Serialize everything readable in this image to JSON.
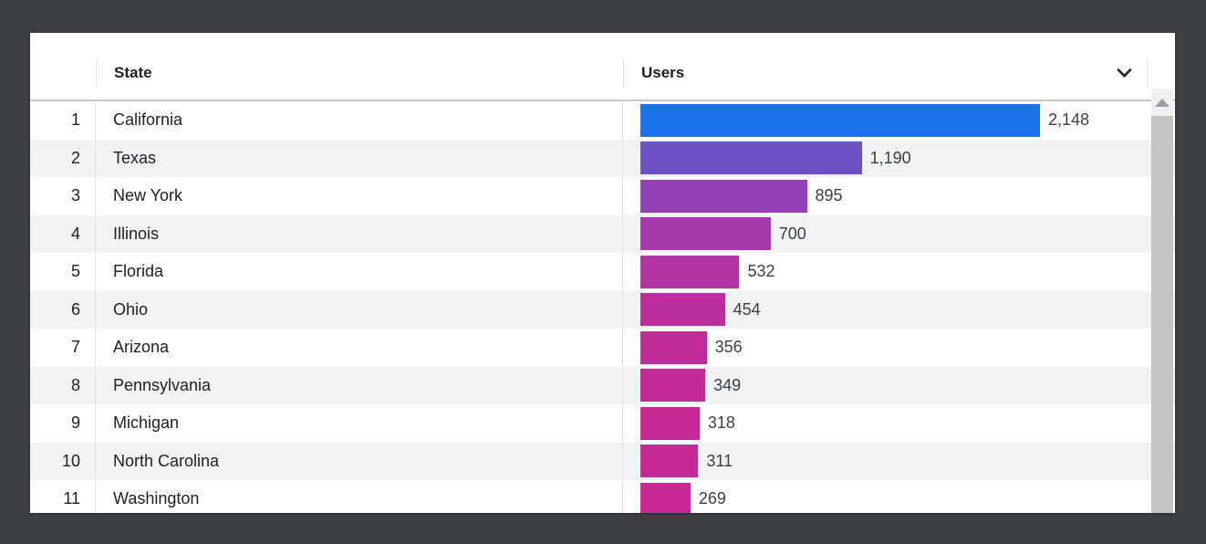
{
  "page": {
    "background_color": "#3c4043",
    "card_color": "#ffffff"
  },
  "icons": {
    "column_chevron": "chevron-down",
    "scrollbar_up": "triangle-up"
  },
  "table": {
    "columns": [
      {
        "key": "state",
        "label": "State"
      },
      {
        "key": "users",
        "label": "Users"
      }
    ],
    "max_users": 2148,
    "rows": [
      {
        "rank": "1",
        "state": "California",
        "users": 2148,
        "users_label": "2,148",
        "bar_color": "#1a73e8"
      },
      {
        "rank": "2",
        "state": "Texas",
        "users": 1190,
        "users_label": "1,190",
        "bar_color": "#6e51c4"
      },
      {
        "rank": "3",
        "state": "New York",
        "users": 895,
        "users_label": "895",
        "bar_color": "#9440b8"
      },
      {
        "rank": "4",
        "state": "Illinois",
        "users": 700,
        "users_label": "700",
        "bar_color": "#a43aac"
      },
      {
        "rank": "5",
        "state": "Florida",
        "users": 532,
        "users_label": "532",
        "bar_color": "#b134a2"
      },
      {
        "rank": "6",
        "state": "Ohio",
        "users": 454,
        "users_label": "454",
        "bar_color": "#ba2f9d"
      },
      {
        "rank": "7",
        "state": "Arizona",
        "users": 356,
        "users_label": "356",
        "bar_color": "#c02d9a"
      },
      {
        "rank": "8",
        "state": "Pennsylvania",
        "users": 349,
        "users_label": "349",
        "bar_color": "#c32b98"
      },
      {
        "rank": "9",
        "state": "Michigan",
        "users": 318,
        "users_label": "318",
        "bar_color": "#c52a97"
      },
      {
        "rank": "10",
        "state": "North Carolina",
        "users": 311,
        "users_label": "311",
        "bar_color": "#c62a96"
      },
      {
        "rank": "11",
        "state": "Washington",
        "users": 269,
        "users_label": "269",
        "bar_color": "#c82995"
      }
    ]
  },
  "chart_data": {
    "type": "bar",
    "orientation": "horizontal",
    "category_label": "State",
    "value_label": "Users",
    "categories": [
      "California",
      "Texas",
      "New York",
      "Illinois",
      "Florida",
      "Ohio",
      "Arizona",
      "Pennsylvania",
      "Michigan",
      "North Carolina",
      "Washington"
    ],
    "values": [
      2148,
      1190,
      895,
      700,
      532,
      454,
      356,
      349,
      318,
      311,
      269
    ],
    "value_labels": [
      "2,148",
      "1,190",
      "895",
      "700",
      "532",
      "454",
      "356",
      "349",
      "318",
      "311",
      "269"
    ],
    "bar_colors": [
      "#1a73e8",
      "#6e51c4",
      "#9440b8",
      "#a43aac",
      "#b134a2",
      "#ba2f9d",
      "#c02d9a",
      "#c32b98",
      "#c52a97",
      "#c62a96",
      "#c82995"
    ],
    "xlim": [
      0,
      2148
    ],
    "legend": false,
    "grid": false
  }
}
